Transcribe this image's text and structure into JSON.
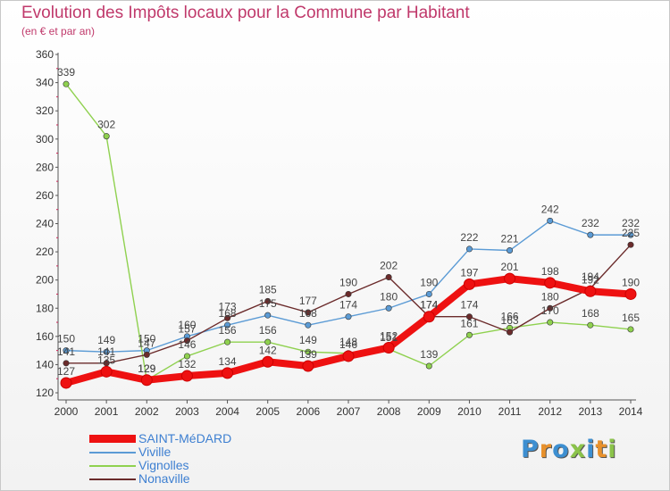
{
  "title": "Evolution des Impôts locaux pour la Commune par Habitant",
  "subtitle": "(en € et par an)",
  "logo": {
    "text": "Proxiti",
    "colors": [
      "#3d8fd1",
      "#e8912c",
      "#3d8fd1",
      "#8bc34a",
      "#3d8fd1",
      "#e8912c",
      "#8bc34a"
    ]
  },
  "chart_data": {
    "type": "line",
    "x": [
      "2000",
      "2001",
      "2002",
      "2003",
      "2004",
      "2005",
      "2006",
      "2007",
      "2008",
      "2009",
      "2010",
      "2011",
      "2012",
      "2013",
      "2014"
    ],
    "ylim": [
      120,
      360
    ],
    "yticks": [
      "120",
      "140",
      "160",
      "180",
      "200",
      "220",
      "240",
      "260",
      "280",
      "300",
      "320",
      "340",
      "360"
    ],
    "grid": false,
    "legend_position": "bottom-left",
    "series": [
      {
        "name": "SAINT-MéDARD",
        "color": "#ee1111",
        "values": [
          127,
          135,
          129,
          132,
          134,
          142,
          139,
          146,
          152,
          174,
          197,
          201,
          198,
          192,
          190
        ]
      },
      {
        "name": "Viville",
        "color": "#5b9bd5",
        "values": [
          150,
          149,
          150,
          160,
          168,
          175,
          168,
          174,
          180,
          190,
          222,
          221,
          242,
          232,
          232
        ]
      },
      {
        "name": "Vignolles",
        "color": "#8fd14f",
        "values": [
          339,
          302,
          129,
          146,
          156,
          156,
          149,
          148,
          151,
          139,
          161,
          166,
          170,
          168,
          165
        ]
      },
      {
        "name": "Nonaville",
        "color": "#6b2b2b",
        "values": [
          141,
          141,
          147,
          157,
          173,
          185,
          177,
          190,
          202,
          174,
          174,
          163,
          180,
          194,
          225
        ]
      }
    ],
    "point_labels": [
      [
        "127",
        "135",
        "129",
        "132",
        "134",
        "142",
        "139",
        "146",
        "152",
        "174",
        "197",
        "201",
        "198",
        "192",
        "190"
      ],
      [
        "150",
        "149",
        "150",
        "160",
        "168",
        "175",
        "168",
        "174",
        "180",
        "190",
        "222",
        "221",
        "242",
        "232",
        "232"
      ],
      [
        "339",
        "302",
        "129",
        "146",
        "156",
        "156",
        "149",
        "148",
        "151",
        "139",
        "161",
        "166",
        "170",
        "168",
        "165"
      ],
      [
        "141",
        "141",
        "147",
        "157",
        "173",
        "185",
        "177",
        "190",
        "202",
        "174",
        "174",
        "163",
        "180",
        "194",
        "225"
      ]
    ]
  }
}
